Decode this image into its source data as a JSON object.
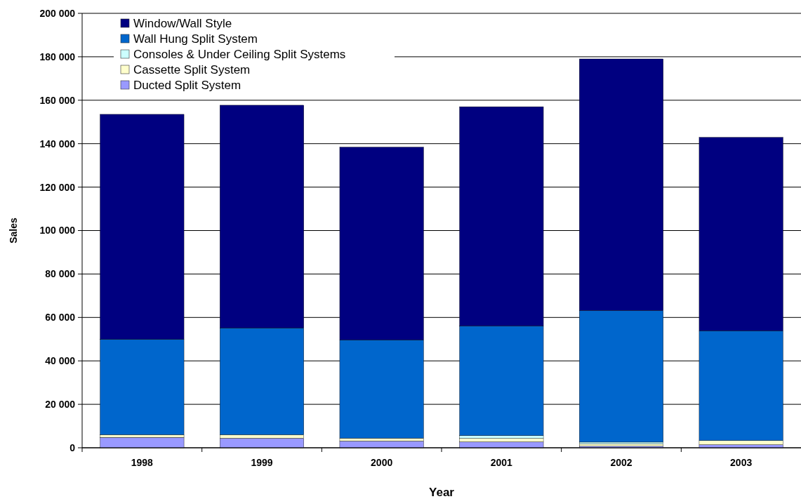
{
  "chart_data": {
    "type": "bar",
    "stacked": true,
    "xlabel": "Year",
    "ylabel": "Sales",
    "categories": [
      "1998",
      "1999",
      "2000",
      "2001",
      "2002",
      "2003"
    ],
    "series": [
      {
        "name": "Ducted Split System",
        "color": "#9999ff",
        "values": [
          4800,
          4400,
          3100,
          2700,
          700,
          1400
        ]
      },
      {
        "name": "Cassette Split System",
        "color": "#ffffcc",
        "values": [
          1200,
          1600,
          1300,
          1600,
          1000,
          1900
        ]
      },
      {
        "name": "Consoles & Under Ceiling Split Systems",
        "color": "#ccffff",
        "values": [
          null,
          null,
          null,
          1300,
          900,
          null
        ]
      },
      {
        "name": "Wall Hung Split System",
        "color": "#0066cc",
        "values": [
          44000,
          49200,
          45300,
          50500,
          60600,
          50600
        ]
      },
      {
        "name": "Window/Wall Style",
        "color": "#000080",
        "values": [
          103500,
          102500,
          88700,
          100900,
          115800,
          89000
        ]
      }
    ],
    "ylim": [
      0,
      200000
    ],
    "yticks": [
      {
        "value": 0,
        "label": "0"
      },
      {
        "value": 20000,
        "label": "20 000"
      },
      {
        "value": 40000,
        "label": "40 000"
      },
      {
        "value": 60000,
        "label": "60 000"
      },
      {
        "value": 80000,
        "label": "80 000"
      },
      {
        "value": 100000,
        "label": "100 000"
      },
      {
        "value": 120000,
        "label": "120 000"
      },
      {
        "value": 140000,
        "label": "140 000"
      },
      {
        "value": 160000,
        "label": "160 000"
      },
      {
        "value": 180000,
        "label": "180 000"
      },
      {
        "value": 200000,
        "label": "200 000"
      }
    ],
    "grid": "y",
    "legend": "top left"
  }
}
